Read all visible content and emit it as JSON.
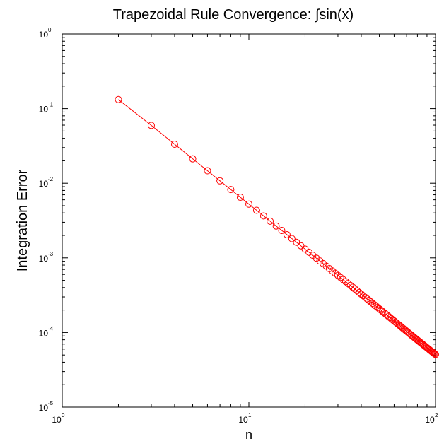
{
  "chart_data": {
    "type": "line",
    "title": "Trapezoidal Rule Convergence: ∫sin(x)",
    "xlabel": "n",
    "ylabel": "Integration Error",
    "xscale": "log",
    "yscale": "log",
    "xlim": [
      1,
      100
    ],
    "ylim": [
      1e-05,
      1
    ],
    "grid": false,
    "x_ticks": [
      {
        "base": "10",
        "exp": "0"
      },
      {
        "base": "10",
        "exp": "1"
      },
      {
        "base": "10",
        "exp": "2"
      }
    ],
    "y_ticks": [
      {
        "base": "10",
        "exp": "0"
      },
      {
        "base": "10",
        "exp": "-1"
      },
      {
        "base": "10",
        "exp": "-2"
      },
      {
        "base": "10",
        "exp": "-3"
      },
      {
        "base": "10",
        "exp": "-4"
      },
      {
        "base": "10",
        "exp": "-5"
      }
    ],
    "series": [
      {
        "color": "#ff0000",
        "marker": "circle",
        "x": [
          2,
          3,
          4,
          5,
          6,
          7,
          8,
          9,
          10,
          11,
          12,
          13,
          14,
          15,
          16,
          17,
          18,
          19,
          20,
          21,
          22,
          23,
          24,
          25,
          26,
          27,
          28,
          29,
          30,
          31,
          32,
          33,
          34,
          35,
          36,
          37,
          38,
          39,
          40,
          41,
          42,
          43,
          44,
          45,
          46,
          47,
          48,
          49,
          50,
          51,
          52,
          53,
          54,
          55,
          56,
          57,
          58,
          59,
          60,
          61,
          62,
          63,
          64,
          65,
          66,
          67,
          68,
          69,
          70,
          71,
          72,
          73,
          74,
          75,
          76,
          77,
          78,
          79,
          80,
          81,
          82,
          83,
          84,
          85,
          86,
          87,
          88,
          89,
          90,
          91,
          92,
          93,
          94,
          95,
          96,
          97,
          98,
          99,
          100
        ],
        "y": [
          0.1322,
          0.0595,
          0.03332,
          0.02123,
          0.0147,
          0.01077,
          0.008229,
          0.00649,
          0.005249,
          0.004336,
          0.003642,
          0.003102,
          0.002673,
          0.002329,
          0.002047,
          0.001813,
          0.001617,
          0.001451,
          0.00131,
          0.001188,
          0.001083,
          0.000991,
          0.0009098,
          0.0008385,
          0.0007752,
          0.0007189,
          0.0006685,
          0.0006232,
          0.0005824,
          0.0005454,
          0.0005119,
          0.0004814,
          0.0004534,
          0.0004278,
          0.0004042,
          0.0003826,
          0.0003626,
          0.0003441,
          0.0003269,
          0.000311,
          0.0002962,
          0.0002824,
          0.0002696,
          0.0002575,
          0.0002462,
          0.0002357,
          0.0002257,
          0.0002163,
          0.0002076,
          0.0001995,
          0.0001917,
          0.0001843,
          0.0001773,
          0.0001708,
          0.0001646,
          0.0001587,
          0.0001531,
          0.0001478,
          0.0001428,
          0.000138,
          0.0001335,
          0.0001292,
          0.0001251,
          0.0001212,
          0.0001174,
          0.0001138,
          0.0001104,
          0.0001072,
          0.0001041,
          0.0001011,
          9.83e-05,
          9.55e-05,
          9.29e-05,
          9.04e-05,
          8.8e-05,
          8.57e-05,
          8.35e-05,
          8.14e-05,
          7.93e-05,
          7.74e-05,
          7.55e-05,
          7.36e-05,
          7.19e-05,
          7.02e-05,
          6.86e-05,
          6.7e-05,
          6.55e-05,
          6.4e-05,
          6.26e-05,
          6.12e-05,
          5.99e-05,
          5.86e-05,
          5.74e-05,
          5.62e-05,
          5.5e-05,
          5.39e-05,
          5.28e-05,
          5.18e-05,
          5.08e-05
        ]
      }
    ]
  }
}
